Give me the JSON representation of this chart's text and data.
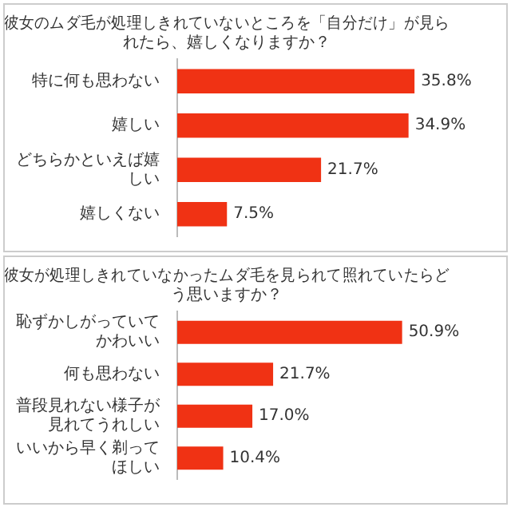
{
  "chart_data": [
    {
      "type": "bar",
      "orientation": "horizontal",
      "title": "彼女のムダ毛が処理しきれていないところを「自分だけ」が見られたら、嬉しくなりますか？",
      "categories": [
        "特に何も思わない",
        "嬉しい",
        "どちらかといえば嬉しい",
        "嬉しくない"
      ],
      "values": [
        35.8,
        34.9,
        21.7,
        7.5
      ],
      "value_labels": [
        "35.8%",
        "34.9%",
        "21.7%",
        "7.5%"
      ],
      "color": "#f03214"
    },
    {
      "type": "bar",
      "orientation": "horizontal",
      "title": "彼女が処理しきれていなかったムダ毛を見られて照れていたらどう思いますか？",
      "categories": [
        "恥ずかしがっていてかわいい",
        "何も思わない",
        "普段見れない様子が見れてうれしい",
        "いいから早く剃ってほしい"
      ],
      "values": [
        50.9,
        21.7,
        17.0,
        10.4
      ],
      "value_labels": [
        "50.9%",
        "21.7%",
        "17.0%",
        "10.4%"
      ],
      "color": "#f03214"
    }
  ]
}
